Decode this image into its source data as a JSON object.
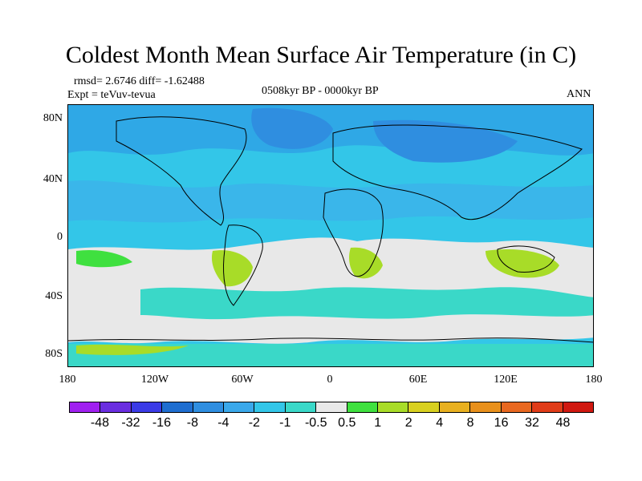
{
  "title": "Coldest Month Mean Surface Air Temperature (in C)",
  "stats": "rmsd= 2.6746 diff= -1.62488",
  "expt": "Expt = teVuv-tevua",
  "period": "0508kyr BP - 0000kyr BP",
  "season": "ANN",
  "lat_labels": [
    "80N",
    "40N",
    "0",
    "40S",
    "80S"
  ],
  "lon_labels": [
    "180",
    "120W",
    "60W",
    "0",
    "60E",
    "120E",
    "180"
  ],
  "colorbar": {
    "levels": [
      "-48",
      "-32",
      "-16",
      "-8",
      "-4",
      "-2",
      "-1",
      "-0.5",
      "0.5",
      "1",
      "2",
      "4",
      "8",
      "16",
      "32",
      "48"
    ],
    "colors": [
      "#a020f0",
      "#6a2ee0",
      "#3b3be6",
      "#1f6ed0",
      "#2f8ee0",
      "#3aa8ea",
      "#33c6e8",
      "#3ad8c8",
      "#e8e8e8",
      "#3fe03f",
      "#a8dc28",
      "#d8d020",
      "#e8b020",
      "#e8901c",
      "#e86820",
      "#e03c18",
      "#d01810"
    ]
  }
}
